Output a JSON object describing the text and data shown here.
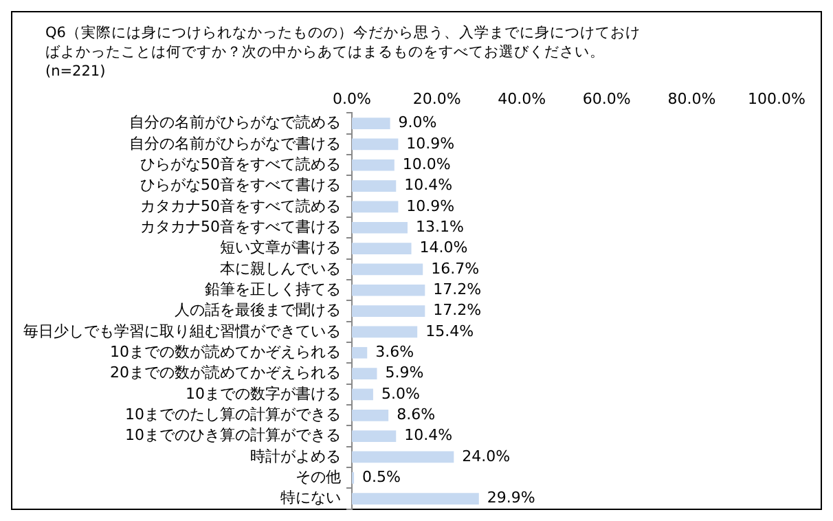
{
  "chart_data": {
    "type": "bar",
    "orientation": "horizontal",
    "title": "Q6（実際には身につけられなかったものの）今だから思う、入学までに身につけておけばよかったことは何ですか？次の中からあてはまるものをすべてお選びください。(n=221)",
    "categories": [
      "自分の名前がひらがなで読める",
      "自分の名前がひらがなで書ける",
      "ひらがな50音をすべて読める",
      "ひらがな50音をすべて書ける",
      "カタカナ50音をすべて読める",
      "カタカナ50音をすべて書ける",
      "短い文章が書ける",
      "本に親しんでいる",
      "鉛筆を正しく持てる",
      "人の話を最後まで聞ける",
      "毎日少しでも学習に取り組む習慣ができている",
      "10までの数が読めてかぞえられる",
      "20までの数が読めてかぞえられる",
      "10までの数字が書ける",
      "10までのたし算の計算ができる",
      "10までのひき算の計算ができる",
      "時計がよめる",
      "その他",
      "特にない"
    ],
    "values": [
      9.0,
      10.9,
      10.0,
      10.4,
      10.9,
      13.1,
      14.0,
      16.7,
      17.2,
      17.2,
      15.4,
      3.6,
      5.9,
      5.0,
      8.6,
      10.4,
      24.0,
      0.5,
      29.9
    ],
    "value_labels": [
      "9.0%",
      "10.9%",
      "10.0%",
      "10.4%",
      "10.9%",
      "13.1%",
      "14.0%",
      "16.7%",
      "17.2%",
      "17.2%",
      "15.4%",
      "3.6%",
      "5.9%",
      "5.0%",
      "8.6%",
      "10.4%",
      "24.0%",
      "0.5%",
      "29.9%"
    ],
    "color": "#c6d9f1",
    "xlim": [
      0,
      100
    ],
    "xticks": [
      {
        "value": 0,
        "label": "0.0%"
      },
      {
        "value": 20,
        "label": "20.0%"
      },
      {
        "value": 40,
        "label": "40.0%"
      },
      {
        "value": 60,
        "label": "60.0%"
      },
      {
        "value": 80,
        "label": "80.0%"
      },
      {
        "value": 100,
        "label": "100.0%"
      }
    ],
    "grid": false,
    "legend": false
  }
}
